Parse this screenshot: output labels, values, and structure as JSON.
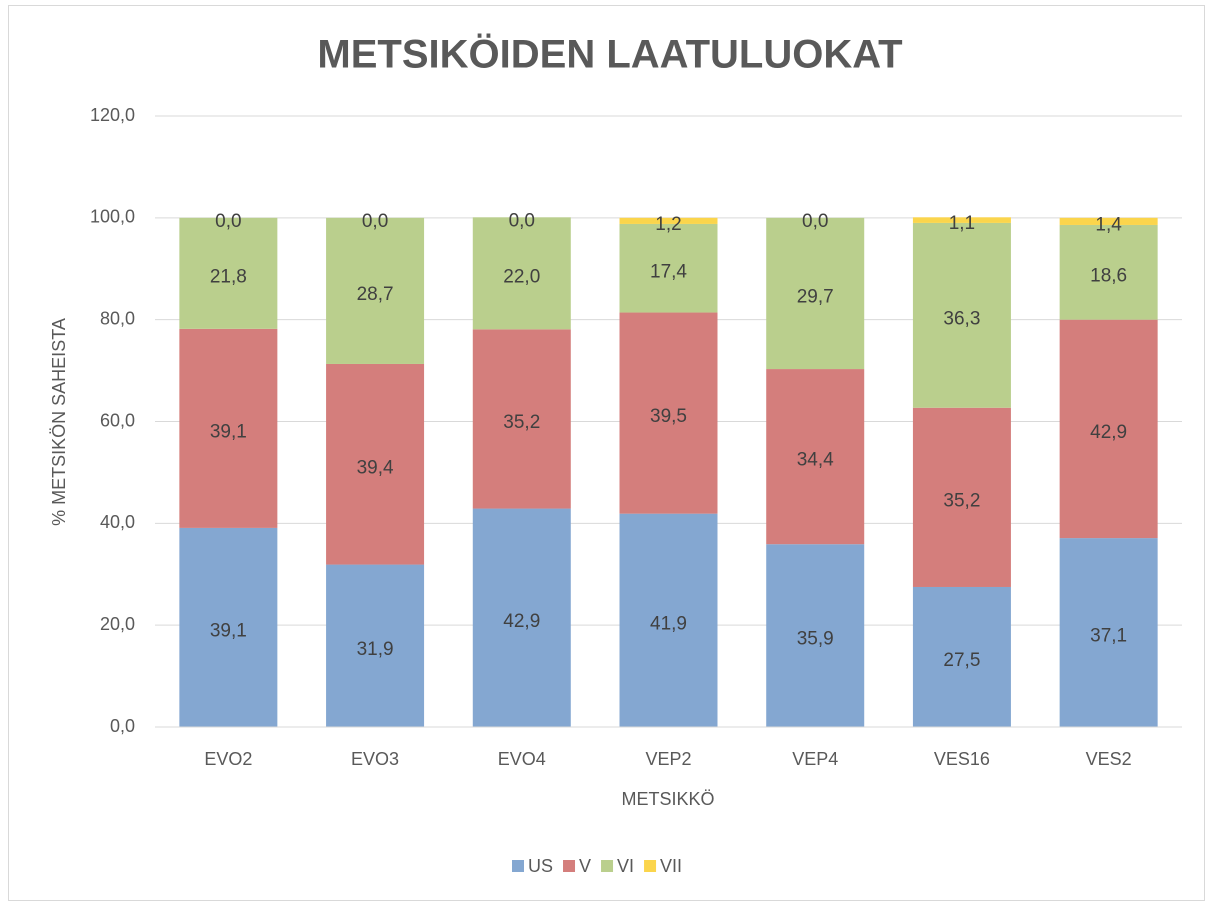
{
  "chart_data": {
    "type": "stacked_bar",
    "title": "METSIKÖIDEN LAATULUOKAT",
    "x_label": "METSIKKÖ",
    "y_label": "% METSIKÖN SAHEISTA",
    "categories": [
      "EVO2",
      "EVO3",
      "EVO4",
      "VEP2",
      "VEP4",
      "VES16",
      "VES2"
    ],
    "series": [
      {
        "name": "US",
        "color": "#84a7d1",
        "values": [
          39.1,
          31.9,
          42.9,
          41.9,
          35.9,
          27.5,
          37.1
        ],
        "value_labels": [
          "39,1",
          "31,9",
          "42,9",
          "41,9",
          "35,9",
          "27,5",
          "37,1"
        ]
      },
      {
        "name": "V",
        "color": "#d47e7c",
        "values": [
          39.1,
          39.4,
          35.2,
          39.5,
          34.4,
          35.2,
          42.9
        ],
        "value_labels": [
          "39,1",
          "39,4",
          "35,2",
          "39,5",
          "34,4",
          "35,2",
          "42,9"
        ]
      },
      {
        "name": "VI",
        "color": "#bacf8d",
        "values": [
          21.8,
          28.7,
          22.0,
          17.4,
          29.7,
          36.3,
          18.6
        ],
        "value_labels": [
          "21,8",
          "28,7",
          "22,0",
          "17,4",
          "29,7",
          "36,3",
          "18,6"
        ]
      },
      {
        "name": "VII",
        "color": "#fbd54c",
        "values": [
          0,
          0,
          0,
          1.2,
          0,
          1.1,
          1.4
        ],
        "value_labels": [
          "0,0",
          "0,0",
          "0,0",
          "1,2",
          "0,0",
          "1,1",
          "1,4"
        ]
      }
    ],
    "ylim": [
      0,
      120
    ],
    "yticks": [
      {
        "value": 0,
        "label": "0,0"
      },
      {
        "value": 20,
        "label": "20,0"
      },
      {
        "value": 40,
        "label": "40,0"
      },
      {
        "value": 60,
        "label": "60,0"
      },
      {
        "value": 80,
        "label": "80,0"
      },
      {
        "value": 100,
        "label": "100,0"
      },
      {
        "value": 120,
        "label": "120,0"
      }
    ],
    "grid": true,
    "legend": "bottom"
  }
}
